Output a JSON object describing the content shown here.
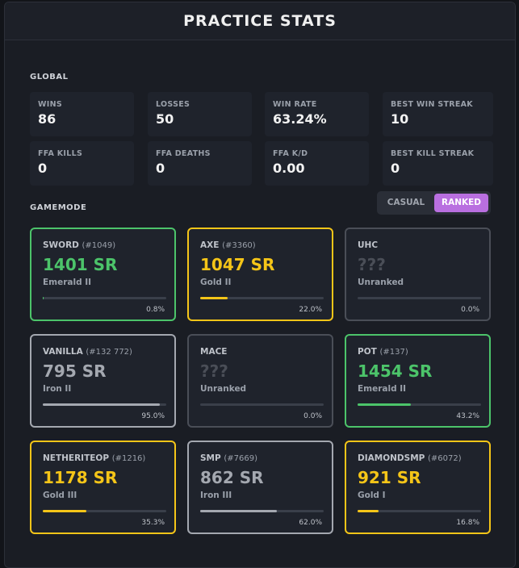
{
  "header": {
    "title": "PRACTICE STATS"
  },
  "global": {
    "label": "GLOBAL",
    "stats": [
      {
        "label": "WINS",
        "value": "86"
      },
      {
        "label": "LOSSES",
        "value": "50"
      },
      {
        "label": "WIN RATE",
        "value": "63.24%"
      },
      {
        "label": "BEST WIN STREAK",
        "value": "10"
      },
      {
        "label": "FFA KILLS",
        "value": "0"
      },
      {
        "label": "FFA DEATHS",
        "value": "0"
      },
      {
        "label": "FFA K/D",
        "value": "0.00"
      },
      {
        "label": "BEST KILL STREAK",
        "value": "0"
      }
    ]
  },
  "gamemode": {
    "label": "GAMEMODE",
    "toggle": {
      "options": [
        "CASUAL",
        "RANKED"
      ],
      "active": 1
    },
    "modes": [
      {
        "name": "SWORD",
        "rank": "(#1049)",
        "sr": "1401 SR",
        "tier": "Emerald II",
        "progress": {
          "value": 0.8,
          "label": "0.8%"
        },
        "color": "#4cc46a",
        "border": "#4cc46a"
      },
      {
        "name": "AXE",
        "rank": "(#3360)",
        "sr": "1047 SR",
        "tier": "Gold II",
        "progress": {
          "value": 22.0,
          "label": "22.0%"
        },
        "color": "#f5c518",
        "border": "#f5c518"
      },
      {
        "name": "UHC",
        "sr": "???",
        "tier": "Unranked",
        "progress": {
          "value": 0.0,
          "label": "0.0%"
        },
        "color": "#4a4e57",
        "border": "#4a4e57"
      },
      {
        "name": "VANILLA",
        "rank": "(#132 772)",
        "sr": "795 SR",
        "tier": "Iron II",
        "progress": {
          "value": 95.0,
          "label": "95.0%"
        },
        "color": "#a4a8b0",
        "border": "#a4a8b0"
      },
      {
        "name": "MACE",
        "sr": "???",
        "tier": "Unranked",
        "progress": {
          "value": 0.0,
          "label": "0.0%"
        },
        "color": "#4a4e57",
        "border": "#4a4e57"
      },
      {
        "name": "POT",
        "rank": "(#137)",
        "sr": "1454 SR",
        "tier": "Emerald II",
        "progress": {
          "value": 43.2,
          "label": "43.2%"
        },
        "color": "#4cc46a",
        "border": "#4cc46a"
      },
      {
        "name": "NETHERITEOP",
        "rank": "(#1216)",
        "sr": "1178 SR",
        "tier": "Gold III",
        "progress": {
          "value": 35.3,
          "label": "35.3%"
        },
        "color": "#f5c518",
        "border": "#f5c518"
      },
      {
        "name": "SMP",
        "rank": "(#7669)",
        "sr": "862 SR",
        "tier": "Iron III",
        "progress": {
          "value": 62.0,
          "label": "62.0%"
        },
        "color": "#a4a8b0",
        "border": "#a4a8b0"
      },
      {
        "name": "DIAMONDSMP",
        "rank": "(#6072)",
        "sr": "921 SR",
        "tier": "Gold I",
        "progress": {
          "value": 16.8,
          "label": "16.8%"
        },
        "color": "#f5c518",
        "border": "#f5c518"
      }
    ]
  }
}
